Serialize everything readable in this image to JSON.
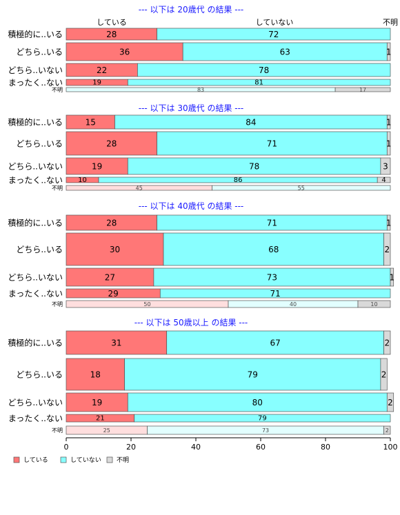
{
  "chart_data": {
    "type": "bar",
    "orientation": "horizontal",
    "stacked": true,
    "xlim": [
      0,
      100
    ],
    "xticks": [
      0,
      20,
      40,
      60,
      80,
      100
    ],
    "grid": false,
    "legend_position": "bottom-left",
    "colors": {
      "している": "#ff7777",
      "していない": "#88ffff",
      "不明": "#d9d9d9",
      "faded_している": "#ffdede",
      "faded_していない": "#e2ffff"
    },
    "series": [
      "している",
      "していない",
      "不明"
    ],
    "top_header": [
      "している",
      "していない",
      "不明"
    ],
    "panels": [
      {
        "title": "--- 以下は 20歳代 の結果 ---",
        "rows": [
          {
            "label": "積極的に..いる",
            "values": [
              28,
              72,
              0
            ],
            "labels": [
              "28",
              "72",
              ""
            ]
          },
          {
            "label": "どちら..いる",
            "values": [
              36,
              63,
              1
            ],
            "labels": [
              "36",
              "63",
              "1"
            ]
          },
          {
            "label": "どちら..いない",
            "values": [
              22,
              78,
              0
            ],
            "labels": [
              "22",
              "78",
              ""
            ]
          },
          {
            "label": "まったく..ない",
            "values": [
              19,
              81,
              0
            ],
            "labels": [
              "19",
              "81",
              ""
            ]
          },
          {
            "label": "不明",
            "values": [
              0,
              83,
              17
            ],
            "labels": [
              "",
              "83",
              "17"
            ]
          }
        ]
      },
      {
        "title": "--- 以下は 30歳代 の結果 ---",
        "rows": [
          {
            "label": "積極的に..いる",
            "values": [
              15,
              84,
              1
            ],
            "labels": [
              "15",
              "84",
              "1"
            ]
          },
          {
            "label": "どちら..いる",
            "values": [
              28,
              71,
              1
            ],
            "labels": [
              "28",
              "71",
              "1"
            ]
          },
          {
            "label": "どちら..いない",
            "values": [
              19,
              78,
              3
            ],
            "labels": [
              "19",
              "78",
              "3"
            ]
          },
          {
            "label": "まったく..ない",
            "values": [
              10,
              86,
              4
            ],
            "labels": [
              "10",
              "86",
              "4"
            ]
          },
          {
            "label": "不明",
            "values": [
              45,
              55,
              0
            ],
            "labels": [
              "45",
              "55",
              ""
            ]
          }
        ]
      },
      {
        "title": "--- 以下は 40歳代 の結果 ---",
        "rows": [
          {
            "label": "積極的に..いる",
            "values": [
              28,
              71,
              1
            ],
            "labels": [
              "28",
              "71",
              "1"
            ]
          },
          {
            "label": "どちら..いる",
            "values": [
              30,
              68,
              2
            ],
            "labels": [
              "30",
              "68",
              "2"
            ]
          },
          {
            "label": "どちら..いない",
            "values": [
              27,
              73,
              1
            ],
            "labels": [
              "27",
              "73",
              "1"
            ]
          },
          {
            "label": "まったく..ない",
            "values": [
              29,
              71,
              0
            ],
            "labels": [
              "29",
              "71",
              ""
            ]
          },
          {
            "label": "不明",
            "values": [
              50,
              40,
              10
            ],
            "labels": [
              "50",
              "40",
              "10"
            ]
          }
        ]
      },
      {
        "title": "--- 以下は 50歳以上 の結果 ---",
        "rows": [
          {
            "label": "積極的に..いる",
            "values": [
              31,
              67,
              2
            ],
            "labels": [
              "31",
              "67",
              "2"
            ]
          },
          {
            "label": "どちら..いる",
            "values": [
              18,
              79,
              2
            ],
            "labels": [
              "18",
              "79",
              "2"
            ]
          },
          {
            "label": "どちら..いない",
            "values": [
              19,
              80,
              2
            ],
            "labels": [
              "19",
              "80",
              "2"
            ]
          },
          {
            "label": "まったく..ない",
            "values": [
              21,
              79,
              0
            ],
            "labels": [
              "21",
              "79",
              ""
            ]
          },
          {
            "label": "不明",
            "values": [
              25,
              73,
              2
            ],
            "labels": [
              "25",
              "73",
              "2"
            ]
          }
        ]
      }
    ],
    "legend": [
      {
        "name": "している",
        "color": "#ff7777"
      },
      {
        "name": "していない",
        "color": "#88ffff"
      },
      {
        "name": "不明",
        "color": "#d9d9d9"
      }
    ]
  }
}
